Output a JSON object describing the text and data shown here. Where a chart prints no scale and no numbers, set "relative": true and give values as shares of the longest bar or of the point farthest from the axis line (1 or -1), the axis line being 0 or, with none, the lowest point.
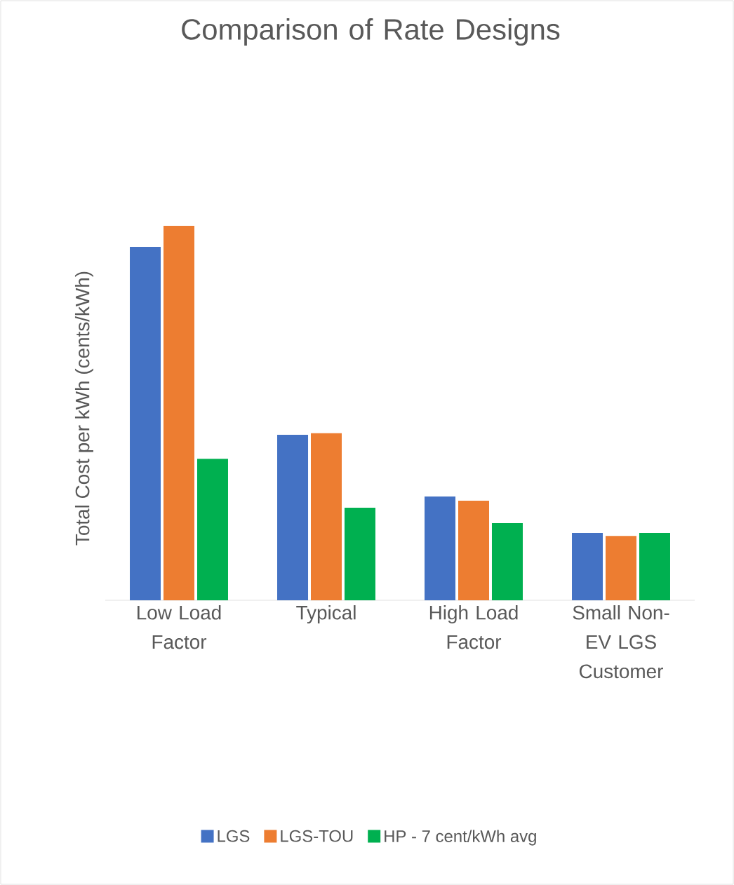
{
  "chart_data": {
    "type": "bar",
    "title": "Comparison of Rate Designs",
    "ylabel": "Total Cost per kWh (cents/kWh)",
    "relative": true,
    "legend": "bottom",
    "categories": [
      "Low Load Factor",
      "Typical",
      "High Load Factor",
      "Small Non-EV LGS Customer"
    ],
    "series": [
      {
        "name": "LGS",
        "color": "#4472c4",
        "values": [
          0.944,
          0.442,
          0.277,
          0.18
        ]
      },
      {
        "name": "LGS-TOU",
        "color": "#ed7d31",
        "values": [
          1,
          0.446,
          0.266,
          0.172
        ]
      },
      {
        "name": "HP - 7 cent/kWh avg",
        "color": "#00b050",
        "values": [
          0.378,
          0.247,
          0.206,
          0.18
        ]
      }
    ]
  }
}
